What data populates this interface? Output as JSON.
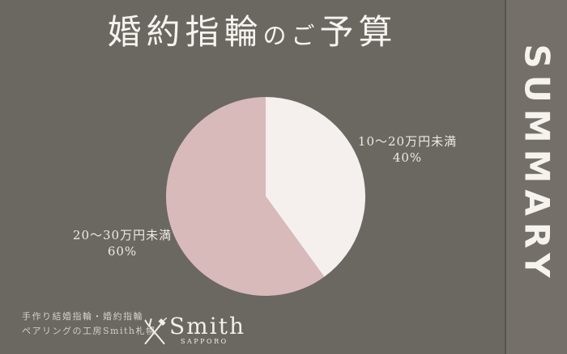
{
  "page": {
    "background": "#6B6761",
    "kind": "survey-summary-slide"
  },
  "header": {
    "title_full": "婚約指輪のご予算",
    "parts": [
      {
        "text": "婚約指輪"
      },
      {
        "text": "のご"
      },
      {
        "text": "予算"
      }
    ],
    "text_color": "#F7F3F0"
  },
  "chart_data": {
    "type": "pie",
    "title": "婚約指輪のご予算",
    "categories": [
      "10〜20万円未満",
      "20〜30万円未満"
    ],
    "values": [
      40,
      60
    ],
    "unit": "%",
    "start_angle": "top",
    "direction": "clockwise",
    "legend_position": "labels-outside",
    "slices": [
      {
        "label": "10〜20万円未満",
        "pct": "40%",
        "value": 40,
        "color": "#F5EFEE",
        "label_side": "right"
      },
      {
        "label": "20〜30万円未満",
        "pct": "60%",
        "value": 60,
        "color": "#D8BABB",
        "label_side": "left"
      }
    ]
  },
  "footer": {
    "line1": "手作り結婚指輪・婚約指輪",
    "line2": "ペアリングの工房Smith札幌",
    "text_color": "#D2CEC8"
  },
  "logo": {
    "brand": "Smith",
    "subtitle": "SAPPORO",
    "icon": "crossed-jewelry-tools",
    "color": "#F2EEE9"
  },
  "sidebar": {
    "label": "SUMMARY",
    "background": "#747069",
    "divider_color": "#56534D",
    "text_color": "#F6F3EF"
  }
}
